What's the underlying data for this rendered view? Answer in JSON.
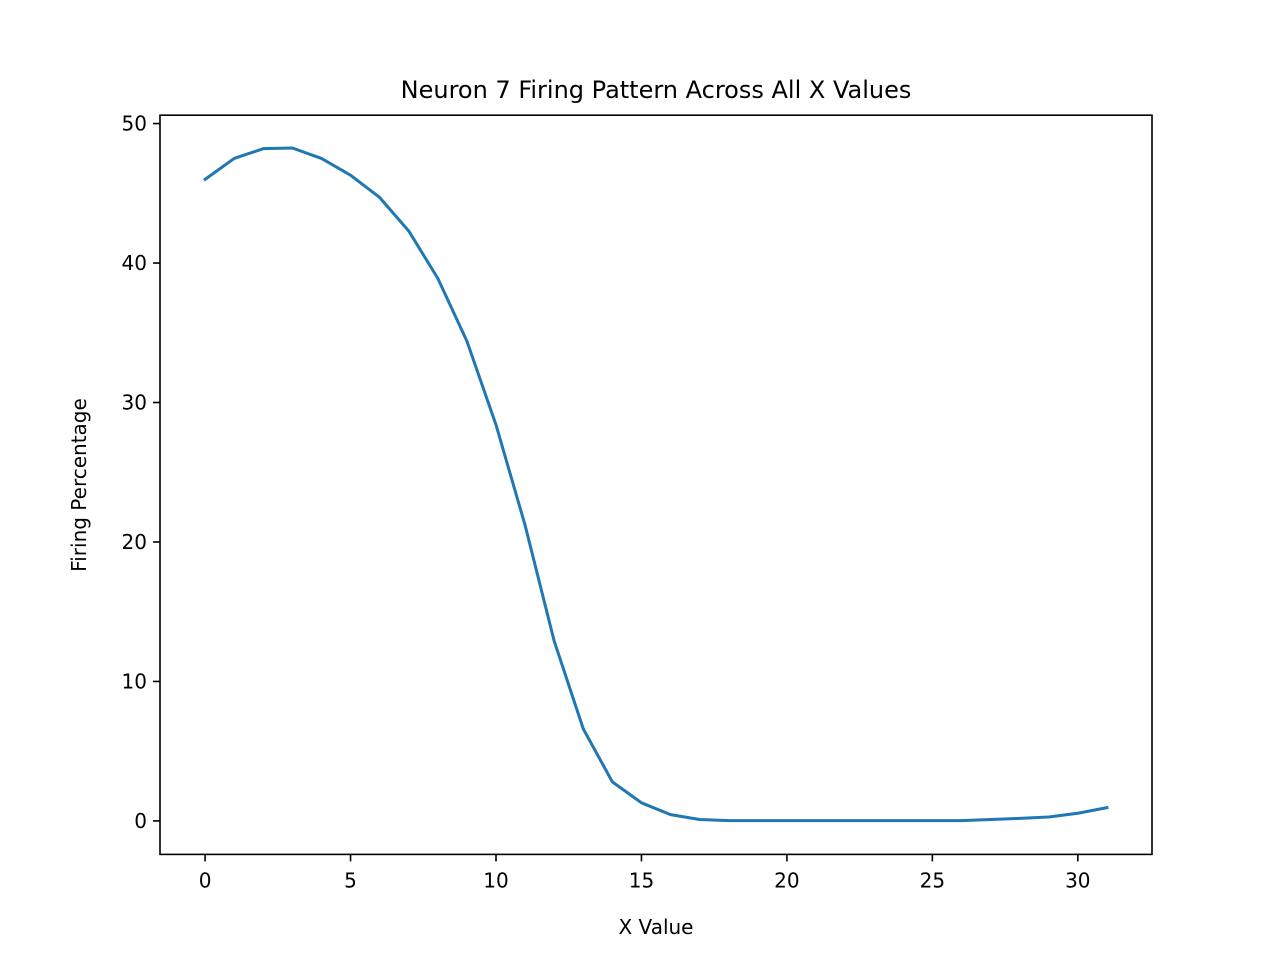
{
  "chart_data": {
    "type": "line",
    "title": "Neuron 7 Firing Pattern Across All X Values",
    "xlabel": "X Value",
    "ylabel": "Firing Percentage",
    "xlim": [
      -1.55,
      32.55
    ],
    "ylim": [
      -2.4,
      50.6
    ],
    "xticks": [
      0,
      5,
      10,
      15,
      20,
      25,
      30
    ],
    "yticks": [
      0,
      10,
      20,
      30,
      40,
      50
    ],
    "grid": false,
    "legend": "none",
    "line_color": "#1f77b4",
    "series": [
      {
        "x": [
          0,
          1,
          2,
          3,
          4,
          5,
          6,
          7,
          8,
          9,
          10,
          11,
          12,
          13,
          14,
          15,
          16,
          17,
          18,
          19,
          20,
          21,
          22,
          23,
          24,
          25,
          26,
          27,
          28,
          29,
          30,
          31
        ],
        "values": [
          46.0,
          47.5,
          48.2,
          48.25,
          47.5,
          46.3,
          44.7,
          42.3,
          38.9,
          34.4,
          28.4,
          21.2,
          12.9,
          6.6,
          2.8,
          1.3,
          0.45,
          0.1,
          0.02,
          0.02,
          0.02,
          0.02,
          0.02,
          0.02,
          0.02,
          0.02,
          0.02,
          0.1,
          0.18,
          0.28,
          0.55,
          0.95
        ]
      }
    ]
  }
}
